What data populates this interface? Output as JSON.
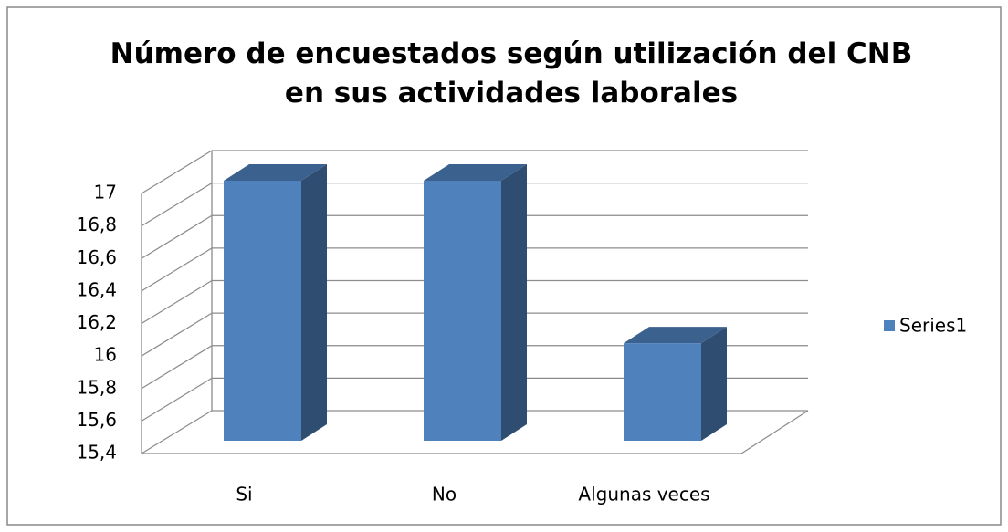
{
  "chart_data": {
    "type": "bar3d",
    "title": "Número de encuestados según utilización del CNB en sus actividades laborales",
    "categories": [
      "Si",
      "No",
      "Algunas veces"
    ],
    "series": [
      {
        "name": "Series1",
        "color": "#4f81bd",
        "values": [
          17,
          17,
          16
        ]
      }
    ],
    "ylim": [
      15.4,
      17
    ],
    "yticks": [
      {
        "value": 15.4,
        "label": "15,4"
      },
      {
        "value": 15.6,
        "label": "15,6"
      },
      {
        "value": 15.8,
        "label": "15,8"
      },
      16,
      {
        "value": 16.2,
        "label": "16,2"
      },
      {
        "value": 16.4,
        "label": "16,4"
      },
      {
        "value": 16.6,
        "label": "16,6"
      },
      {
        "value": 16.8,
        "label": "16,8"
      },
      17
    ],
    "grid": true,
    "legend": "right"
  }
}
